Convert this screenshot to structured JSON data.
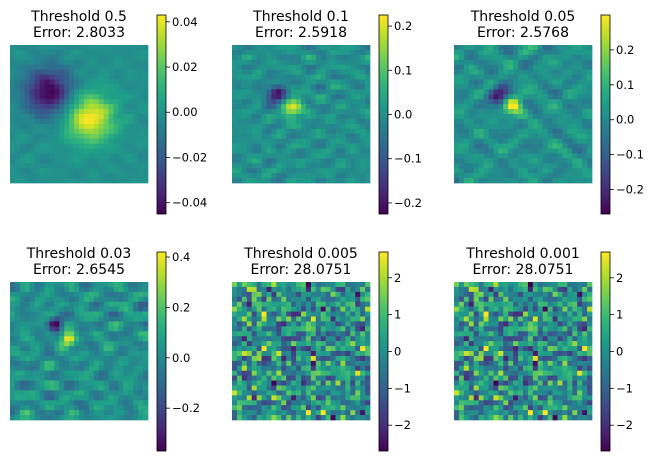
{
  "chart_data": [
    {
      "type": "heatmap",
      "title_line1": "Threshold 0.5",
      "title_line2": "Error: 2.8033",
      "colorbar": {
        "range": [
          -0.045,
          0.043
        ],
        "ticks": [
          0.04,
          0.02,
          0.0,
          -0.02,
          -0.04
        ],
        "tick_labels": [
          "0.04",
          "0.02",
          "0.00",
          "−0.02",
          "−0.04"
        ]
      },
      "pattern": {
        "kind": "smooth",
        "neg_peak": [
          0.28,
          0.34
        ],
        "pos_peak": [
          0.58,
          0.53
        ],
        "sigma": 0.12,
        "amplitude": 1.0,
        "ripple": 0.1,
        "seed": 3
      }
    },
    {
      "type": "heatmap",
      "title_line1": "Threshold 0.1",
      "title_line2": "Error: 2.5918",
      "colorbar": {
        "range": [
          -0.225,
          0.225
        ],
        "ticks": [
          0.2,
          0.1,
          0.0,
          -0.1,
          -0.2
        ],
        "tick_labels": [
          "0.2",
          "0.1",
          "0.0",
          "−0.1",
          "−0.2"
        ]
      },
      "pattern": {
        "kind": "smooth",
        "neg_peak": [
          0.33,
          0.37
        ],
        "pos_peak": [
          0.43,
          0.45
        ],
        "sigma": 0.055,
        "amplitude": 0.9,
        "ripple": 0.25,
        "seed": 7
      }
    },
    {
      "type": "heatmap",
      "title_line1": "Threshold 0.05",
      "title_line2": "Error: 2.5768",
      "colorbar": {
        "range": [
          -0.27,
          0.3
        ],
        "ticks": [
          0.2,
          0.1,
          0.0,
          -0.1,
          -0.2
        ],
        "tick_labels": [
          "0.2",
          "0.1",
          "0.0",
          "−0.1",
          "−0.2"
        ]
      },
      "pattern": {
        "kind": "smooth",
        "neg_peak": [
          0.33,
          0.37
        ],
        "pos_peak": [
          0.43,
          0.44
        ],
        "sigma": 0.05,
        "amplitude": 0.9,
        "ripple": 0.3,
        "seed": 11
      }
    },
    {
      "type": "heatmap",
      "title_line1": "Threshold 0.03",
      "title_line2": "Error: 2.6545",
      "colorbar": {
        "range": [
          -0.37,
          0.42
        ],
        "ticks": [
          0.4,
          0.2,
          0.0,
          -0.2
        ],
        "tick_labels": [
          "0.4",
          "0.2",
          "0.0",
          "−0.2"
        ]
      },
      "pattern": {
        "kind": "smooth",
        "neg_peak": [
          0.33,
          0.31
        ],
        "pos_peak": [
          0.42,
          0.41
        ],
        "sigma": 0.035,
        "amplitude": 1.0,
        "ripple": 0.35,
        "seed": 19
      }
    },
    {
      "type": "heatmap",
      "title_line1": "Threshold 0.005",
      "title_line2": "Error: 28.0751",
      "colorbar": {
        "range": [
          -2.7,
          2.7
        ],
        "ticks": [
          2,
          1,
          0,
          -1,
          -2
        ],
        "tick_labels": [
          "2",
          "1",
          "0",
          "−1",
          "−2"
        ]
      },
      "pattern": {
        "kind": "noise",
        "seed": 42
      }
    },
    {
      "type": "heatmap",
      "title_line1": "Threshold 0.001",
      "title_line2": "Error: 28.0751",
      "colorbar": {
        "range": [
          -2.7,
          2.7
        ],
        "ticks": [
          2,
          1,
          0,
          -1,
          -2
        ],
        "tick_labels": [
          "2",
          "1",
          "0",
          "−1",
          "−2"
        ]
      },
      "pattern": {
        "kind": "noise",
        "seed": 42
      }
    }
  ]
}
